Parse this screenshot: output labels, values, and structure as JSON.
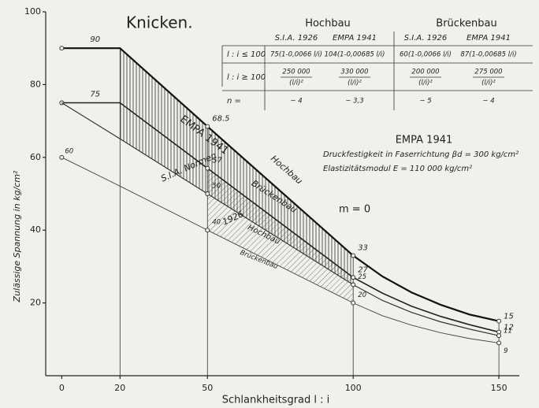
{
  "chart_data": {
    "type": "line",
    "title": "Knicken.",
    "xlabel": "Schlankheitsgrad l : i",
    "ylabel": "Zulässige Spannung in kg/cm²",
    "x": [
      0,
      20,
      50,
      100,
      110,
      120,
      130,
      140,
      150
    ],
    "series": [
      {
        "name": "Hochbau",
        "color": "#111111",
        "values": [
          90,
          90,
          68.5,
          33,
          27.3,
          22.9,
          19.5,
          16.8,
          15
        ],
        "value_labels": [
          "90",
          null,
          "68.5",
          "33",
          null,
          null,
          null,
          null,
          "15"
        ]
      },
      {
        "name": "Brückenbau",
        "color": "#222222",
        "values": [
          75,
          75,
          57,
          27,
          22.7,
          19.1,
          16.3,
          14,
          12
        ],
        "value_labels": [
          "75",
          null,
          "57",
          "27",
          null,
          null,
          null,
          null,
          "12"
        ]
      },
      {
        "name": "Hochbau",
        "color": "#333333",
        "values": [
          75,
          65.1,
          50,
          25,
          20.7,
          17.4,
          14.8,
          12.8,
          11
        ],
        "value_labels": [
          null,
          null,
          "50",
          "25",
          null,
          null,
          null,
          null,
          "11"
        ]
      },
      {
        "name": "Brückenbau",
        "color": "#444444",
        "values": [
          60,
          52.1,
          40,
          20,
          16.5,
          13.9,
          11.8,
          10.2,
          9
        ],
        "value_labels": [
          "60",
          null,
          "40",
          "20",
          null,
          null,
          null,
          null,
          "9"
        ]
      }
    ],
    "annotations": {
      "empa": "EMPA 1941",
      "sia": "S.I.A. Normen",
      "year": "1926",
      "m": "m = 0"
    },
    "xlim": [
      -5.5,
      157
    ],
    "xticks": [
      0,
      20,
      50,
      100,
      150
    ],
    "ylim": [
      0,
      100
    ],
    "yticks": [
      20,
      40,
      60,
      80,
      100
    ],
    "grid": false
  },
  "table": {
    "groups": [
      "Hochbau",
      "Brückenbau"
    ],
    "columns": [
      "S.I.A. 1926",
      "EMPA 1941",
      "S.I.A. 1926",
      "EMPA 1941"
    ],
    "rows": [
      {
        "label": "l : i ≤ 100",
        "cells": [
          "75(1-0,0066 l/i)",
          "104(1-0,00685 l/i)",
          "60(1-0,0066 l/i)",
          "87(1-0,00685 l/i)"
        ]
      },
      {
        "label": "l : i ≥ 100",
        "cells": [
          {
            "num": "250 000",
            "den": "(l/i)²"
          },
          {
            "num": "330 000",
            "den": "(l/i)²"
          },
          {
            "num": "200 000",
            "den": "(l/i)²"
          },
          {
            "num": "275 000",
            "den": "(l/i)²"
          }
        ]
      },
      {
        "label": "n =",
        "cells": [
          "~ 4",
          "~ 3,3",
          "~ 5",
          "~ 4"
        ]
      }
    ]
  },
  "note": {
    "title": "EMPA 1941",
    "lines": [
      "Druckfestigkeit in Faserrichtung βd = 300 kg/cm²",
      "Elastizitätsmodul   E = 110 000 kg/cm²"
    ]
  }
}
